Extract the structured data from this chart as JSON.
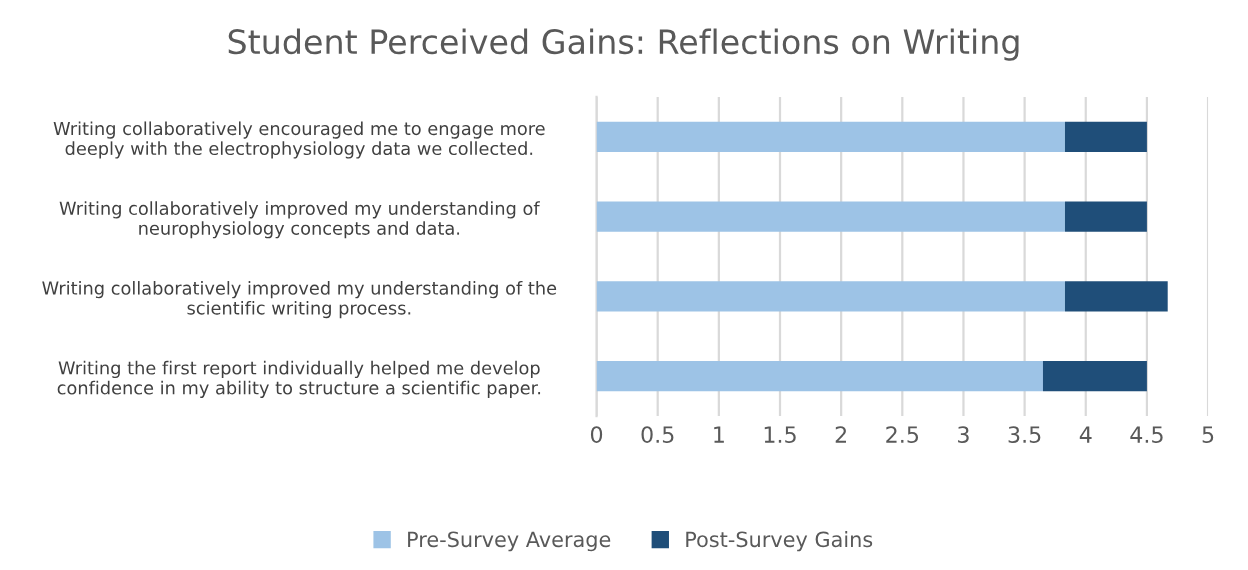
{
  "chart_data": {
    "type": "bar",
    "orientation": "horizontal",
    "stacked": true,
    "title": "Student Perceived Gains: Reflections on Writing",
    "categories": [
      "Writing collaboratively encouraged me to engage more\ndeeply with the electrophysiology data we collected.",
      "Writing collaboratively improved my understanding of\nneurophysiology concepts and data.",
      "Writing collaboratively improved my understanding of the\nscientific writing process.",
      "Writing the first report individually helped me develop\nconfidence in my ability to structure a scientific paper."
    ],
    "series": [
      {
        "name": "Pre-Survey Average",
        "color": "#9dc3e6",
        "values": [
          3.83,
          3.83,
          3.83,
          3.65
        ]
      },
      {
        "name": "Post-Survey Gains",
        "color": "#1f4e79",
        "values": [
          0.67,
          0.67,
          0.84,
          0.85
        ]
      }
    ],
    "xlim": [
      0,
      5
    ],
    "xticks": [
      0,
      0.5,
      1,
      1.5,
      2,
      2.5,
      3,
      3.5,
      4,
      4.5,
      5
    ],
    "grid": "x",
    "legend": "bottom"
  }
}
